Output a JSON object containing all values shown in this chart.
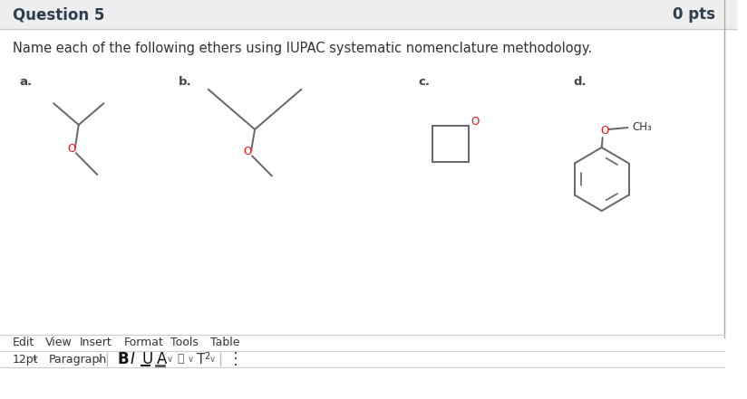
{
  "title": "Question 5",
  "pts": "0 pts",
  "question_text": "Name each of the following ethers using IUPAC systematic nomenclature methodology.",
  "labels": [
    "a.",
    "b.",
    "c.",
    "d."
  ],
  "bg_color": "#ffffff",
  "header_bg": "#eeeeee",
  "line_color": "#666666",
  "o_color": "#ee1111",
  "toolbar_items": [
    "Edit",
    "View",
    "Insert",
    "Format",
    "Tools",
    "Table"
  ],
  "font_size_title": 12,
  "font_size_body": 10.5
}
